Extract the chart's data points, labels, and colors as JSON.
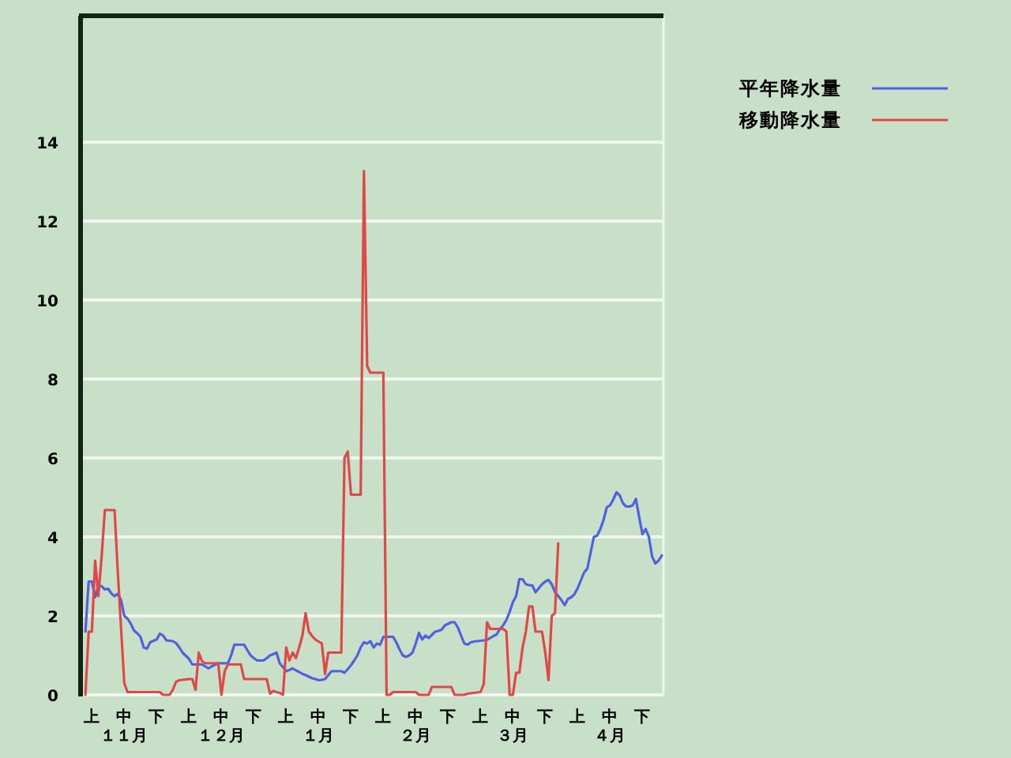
{
  "chart_data": {
    "type": "line",
    "categories": [
      null,
      null,
      null,
      "上",
      null,
      null,
      null,
      null,
      null,
      null,
      null,
      null,
      null,
      "中１１月",
      null,
      null,
      null,
      null,
      null,
      null,
      null,
      null,
      null,
      "下",
      null,
      null,
      null,
      null,
      null,
      null,
      null,
      null,
      null,
      "上",
      null,
      null,
      null,
      null,
      null,
      null,
      null,
      null,
      null,
      "中１２月",
      null,
      null,
      null,
      null,
      null,
      null,
      null,
      null,
      null,
      "下",
      null,
      null,
      null,
      null,
      null,
      null,
      null,
      null,
      null,
      "上",
      null,
      null,
      null,
      null,
      null,
      null,
      null,
      null,
      null,
      "中１月",
      null,
      null,
      null,
      null,
      null,
      null,
      null,
      null,
      null,
      "下",
      null,
      null,
      null,
      null,
      null,
      null,
      null,
      null,
      null,
      "上",
      null,
      null,
      null,
      null,
      null,
      null,
      null,
      null,
      null,
      "中２月",
      null,
      null,
      null,
      null,
      null,
      null,
      null,
      null,
      null,
      "下",
      null,
      null,
      null,
      null,
      null,
      null,
      null,
      null,
      null,
      "上",
      null,
      null,
      null,
      null,
      null,
      null,
      null,
      null,
      null,
      "中３月",
      null,
      null,
      null,
      null,
      null,
      null,
      null,
      null,
      null,
      "下",
      null,
      null,
      null,
      null,
      null,
      null,
      null,
      null,
      null,
      "上",
      null,
      null,
      null,
      null,
      null,
      null,
      null,
      null,
      null,
      "中４月",
      null,
      null,
      null,
      null,
      null,
      null,
      null,
      null,
      null,
      "下",
      null,
      null,
      null,
      null,
      null,
      null
    ],
    "ylim": [
      0,
      17.2
    ],
    "yticks": [
      0,
      2,
      4,
      6,
      8,
      10,
      12,
      14
    ],
    "grid": "y",
    "legend": "top right",
    "series": [
      {
        "name": "平年降水量",
        "color": "#5060e0",
        "values": [
          null,
          1.6,
          2.87,
          2.87,
          2.47,
          2.77,
          2.75,
          2.67,
          2.69,
          2.57,
          2.5,
          2.56,
          2.4,
          2.0,
          1.93,
          1.8,
          1.63,
          1.56,
          1.47,
          1.2,
          1.17,
          1.33,
          1.37,
          1.4,
          1.55,
          1.5,
          1.38,
          1.37,
          1.36,
          1.31,
          1.2,
          1.07,
          0.99,
          0.91,
          0.77,
          0.77,
          0.77,
          0.77,
          0.72,
          0.67,
          0.72,
          0.76,
          0.8,
          0.8,
          0.8,
          0.8,
          1.0,
          1.27,
          1.27,
          1.27,
          1.27,
          1.13,
          1.0,
          0.93,
          0.87,
          0.87,
          0.87,
          0.93,
          1.0,
          1.03,
          1.07,
          0.8,
          0.7,
          0.6,
          0.63,
          0.67,
          0.62,
          0.58,
          0.53,
          0.5,
          0.46,
          0.42,
          0.4,
          0.37,
          0.38,
          0.4,
          0.5,
          0.6,
          0.6,
          0.6,
          0.6,
          0.56,
          0.65,
          0.75,
          0.87,
          1.0,
          1.2,
          1.33,
          1.3,
          1.36,
          1.2,
          1.3,
          1.27,
          1.47,
          1.47,
          1.47,
          1.47,
          1.33,
          1.15,
          1.0,
          0.96,
          1.0,
          1.07,
          1.3,
          1.57,
          1.4,
          1.5,
          1.44,
          1.52,
          1.6,
          1.62,
          1.65,
          1.76,
          1.8,
          1.84,
          1.84,
          1.71,
          1.5,
          1.3,
          1.27,
          1.33,
          1.35,
          1.36,
          1.37,
          1.38,
          1.39,
          1.44,
          1.49,
          1.53,
          1.67,
          1.76,
          1.9,
          2.1,
          2.35,
          2.5,
          2.93,
          2.93,
          2.8,
          2.78,
          2.77,
          2.6,
          2.7,
          2.8,
          2.87,
          2.91,
          2.8,
          2.6,
          2.5,
          2.4,
          2.27,
          2.43,
          2.47,
          2.55,
          2.7,
          2.9,
          3.1,
          3.2,
          3.6,
          4.0,
          4.03,
          4.2,
          4.43,
          4.75,
          4.8,
          4.95,
          5.13,
          5.05,
          4.85,
          4.77,
          4.77,
          4.8,
          4.96,
          4.5,
          4.07,
          4.2,
          4.0,
          3.5,
          3.33,
          3.4,
          3.53
        ]
      },
      {
        "name": "移動降水量",
        "color": "#e04848",
        "values": [
          null,
          0,
          1.6,
          1.6,
          3.4,
          2.5,
          3.5,
          4.68,
          4.68,
          4.68,
          4.68,
          3.1,
          1.7,
          0.3,
          0.07,
          0.07,
          0.07,
          0.07,
          0.07,
          0.07,
          0.07,
          0.07,
          0.07,
          0.07,
          0.07,
          0,
          0,
          0,
          0.13,
          0.33,
          0.37,
          0.38,
          0.39,
          0.4,
          0.4,
          0.13,
          1.07,
          0.85,
          0.8,
          0.8,
          0.8,
          0.8,
          0.8,
          0,
          0.6,
          0.77,
          0.77,
          0.77,
          0.77,
          0.77,
          0.4,
          0.4,
          0.4,
          0.4,
          0.4,
          0.4,
          0.4,
          0.4,
          0.03,
          0.1,
          0.07,
          0.05,
          0,
          1.2,
          0.87,
          1.07,
          0.93,
          1.2,
          1.5,
          2.07,
          1.6,
          1.49,
          1.4,
          1.35,
          1.3,
          0.53,
          1.07,
          1.07,
          1.07,
          1.07,
          1.07,
          6.0,
          6.16,
          5.07,
          5.07,
          5.07,
          5.07,
          13.27,
          8.33,
          8.16,
          8.16,
          8.16,
          8.16,
          8.16,
          0,
          0,
          0.07,
          0.07,
          0.07,
          0.07,
          0.07,
          0.07,
          0.07,
          0.07,
          0,
          0,
          0,
          0,
          0.2,
          0.2,
          0.2,
          0.2,
          0.2,
          0.2,
          0.2,
          0,
          0,
          0,
          0,
          0.03,
          0.04,
          0.05,
          0.06,
          0.07,
          0.27,
          1.84,
          1.67,
          1.67,
          1.67,
          1.67,
          1.67,
          1.6,
          0,
          0,
          0.56,
          0.56,
          1.2,
          1.6,
          2.24,
          2.24,
          1.6,
          1.6,
          1.6,
          1.07,
          0.37,
          2.0,
          2.07,
          3.84,
          null,
          null,
          null,
          null,
          null,
          null,
          null,
          null,
          null,
          null,
          null,
          null,
          null,
          null,
          null,
          null,
          null,
          null,
          null,
          null,
          null,
          null,
          null,
          null,
          null,
          null,
          null,
          null,
          null,
          null,
          null,
          null
        ]
      }
    ]
  }
}
